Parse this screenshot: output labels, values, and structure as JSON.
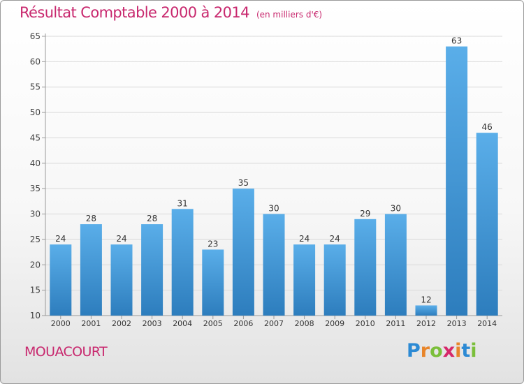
{
  "title": "Résultat Comptable 2000 à 2014",
  "subtitle": "(en milliers d'€)",
  "commune": "MOUACOURT",
  "logo": {
    "letters": [
      "P",
      "r",
      "o",
      "x",
      "i",
      "t",
      "i"
    ],
    "colors": [
      "#2c8ad4",
      "#e8852a",
      "#7bbf3a",
      "#d6286a",
      "#e8852a",
      "#2c8ad4",
      "#7bbf3a"
    ]
  },
  "colors": {
    "title": "#c8286e",
    "bar_top": "#5aaee9",
    "bar_bottom": "#2d7dbd",
    "grid": "#d9d9d9"
  },
  "chart_data": {
    "type": "bar",
    "categories": [
      "2000",
      "2001",
      "2002",
      "2003",
      "2004",
      "2005",
      "2006",
      "2007",
      "2008",
      "2009",
      "2010",
      "2011",
      "2012",
      "2013",
      "2014"
    ],
    "values": [
      24,
      28,
      24,
      28,
      31,
      23,
      35,
      30,
      24,
      24,
      29,
      30,
      12,
      63,
      46
    ],
    "title": "Résultat Comptable 2000 à 2014",
    "xlabel": "",
    "ylabel": "",
    "ylim": [
      10,
      65
    ],
    "yticks": [
      10,
      15,
      20,
      25,
      30,
      35,
      40,
      45,
      50,
      55,
      60,
      65
    ],
    "grid": true
  }
}
